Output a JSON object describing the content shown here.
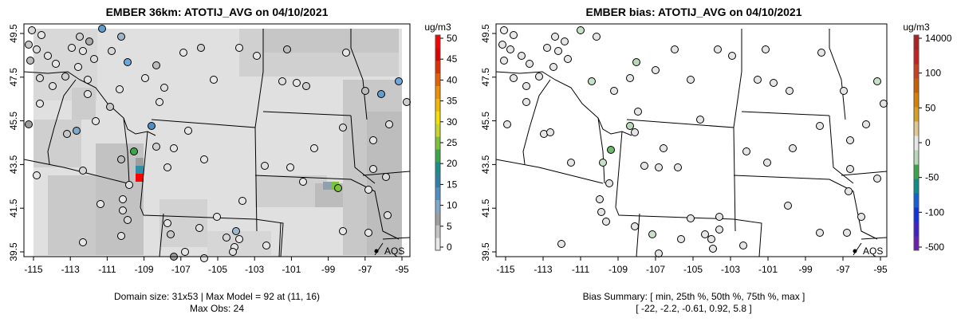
{
  "panels": [
    {
      "title": "EMBER 36km: ATOTIJ_AVG on 04/10/2021",
      "footer_lines": [
        "Domain size: 31x53 | Max Model = 92 at (11, 16)",
        "Max Obs: 24"
      ],
      "colorbar": {
        "unit": "ug/m3",
        "ticks": [
          "0",
          "5",
          "10",
          "15",
          "20",
          "25",
          "30",
          "35",
          "40",
          "45",
          "50"
        ],
        "colors": [
          "#e8e8e8",
          "#c4c4c4",
          "#9e9e9e",
          "#7fa8c9",
          "#4f8fc3",
          "#2f7fa8",
          "#1a8f8a",
          "#3aa84a",
          "#7cc23a",
          "#c8d62a",
          "#f3e000",
          "#f5b800",
          "#f08f00",
          "#e86000",
          "#e03000",
          "#e00000",
          "#ff0000"
        ]
      },
      "lon_ticks": [
        "-115",
        "-113",
        "-111",
        "-109",
        "-107",
        "-105",
        "-103",
        "-101",
        "-99",
        "-97",
        "-95"
      ],
      "lat_ticks": [
        "39.5",
        "41.5",
        "43.5",
        "45.5",
        "47.5",
        "49.5"
      ],
      "site_label": "AQS"
    },
    {
      "title": "EMBER bias: ATOTIJ_AVG on 04/10/2021",
      "footer_lines": [
        "Bias Summary: [ min, 25th %, 50th %, 75th %, max ]",
        "[ -22,  -2.2,  -0.61,  0.92,  5.8 ]"
      ],
      "colorbar": {
        "unit": "ug/m3",
        "ticks": [
          "-500",
          "-100",
          "-50",
          "0",
          "50",
          "100",
          "14000"
        ],
        "colors": [
          "#6a1fb0",
          "#4020c8",
          "#1030e0",
          "#1060d8",
          "#0a8f8a",
          "#3aa84a",
          "#b8d8b8",
          "#e8e8e8",
          "#e0c890",
          "#d8a020",
          "#d88000",
          "#c86000",
          "#c84020",
          "#c82020",
          "#b02020"
        ]
      },
      "lon_ticks": [
        "-115",
        "-113",
        "-111",
        "-109",
        "-107",
        "-105",
        "-103",
        "-101",
        "-99",
        "-97",
        "-95"
      ],
      "lat_ticks": [
        "39.5",
        "41.5",
        "43.5",
        "45.5",
        "47.5",
        "49.5"
      ],
      "site_label": "AQS"
    }
  ]
}
